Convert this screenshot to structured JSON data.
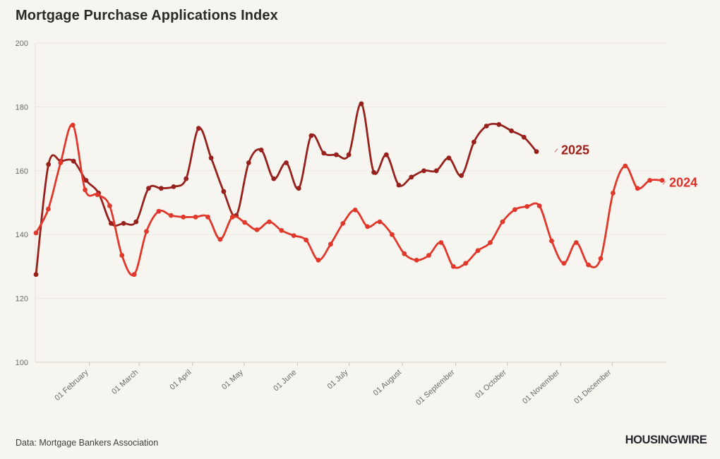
{
  "page": {
    "title": "Mortgage Purchase Applications Index",
    "source_note": "Data: Mortgage Bankers Association",
    "brand": "HOUSINGWIRE",
    "background_color": "#f7f5f0"
  },
  "chart_data": {
    "type": "line",
    "title": "Mortgage Purchase Applications Index",
    "xlabel": "",
    "ylabel": "",
    "ylim": [
      100,
      200
    ],
    "y_ticks": [
      200,
      180,
      160,
      140,
      120,
      100
    ],
    "x_tick_labels": [
      "01 February",
      "01 March",
      "01 April",
      "01 May",
      "01 June",
      "01 July",
      "01 August",
      "01 September",
      "01 October",
      "01 November",
      "01 December"
    ],
    "grid": "horizontal",
    "legend_position": "end-of-line",
    "frequency": "weekly",
    "series": [
      {
        "name": "2025",
        "color": "#96211d",
        "label_color": "#9c201a",
        "values": [
          127.5,
          162,
          163,
          163,
          157,
          153,
          143.5,
          143.5,
          144,
          154.5,
          154.5,
          155,
          157.5,
          173.3,
          164,
          153.5,
          146,
          162.5,
          166.5,
          157.5,
          162.5,
          154.5,
          171,
          165.5,
          165,
          165,
          181,
          159.5,
          165,
          155.5,
          158,
          160,
          160,
          164,
          158.5,
          169,
          174,
          174.5,
          172.5,
          170.5,
          166
        ]
      },
      {
        "name": "2024",
        "color": "#e0382b",
        "label_color": "#dc3228",
        "values": [
          140.5,
          148,
          162.5,
          174.3,
          154,
          152.5,
          149,
          133.5,
          127.5,
          141,
          147.3,
          146,
          145.5,
          145.5,
          145.5,
          138.5,
          145.5,
          143.8,
          141.5,
          144,
          141.3,
          139.7,
          138.3,
          132,
          137,
          143.5,
          147.7,
          142.5,
          144,
          140,
          134,
          132,
          133.5,
          137.5,
          130,
          131,
          135,
          137.5,
          144,
          147.8,
          148.8,
          149,
          138,
          131,
          137.5,
          130.5,
          132.5,
          153,
          161.5,
          154.5,
          157,
          157
        ]
      }
    ]
  }
}
